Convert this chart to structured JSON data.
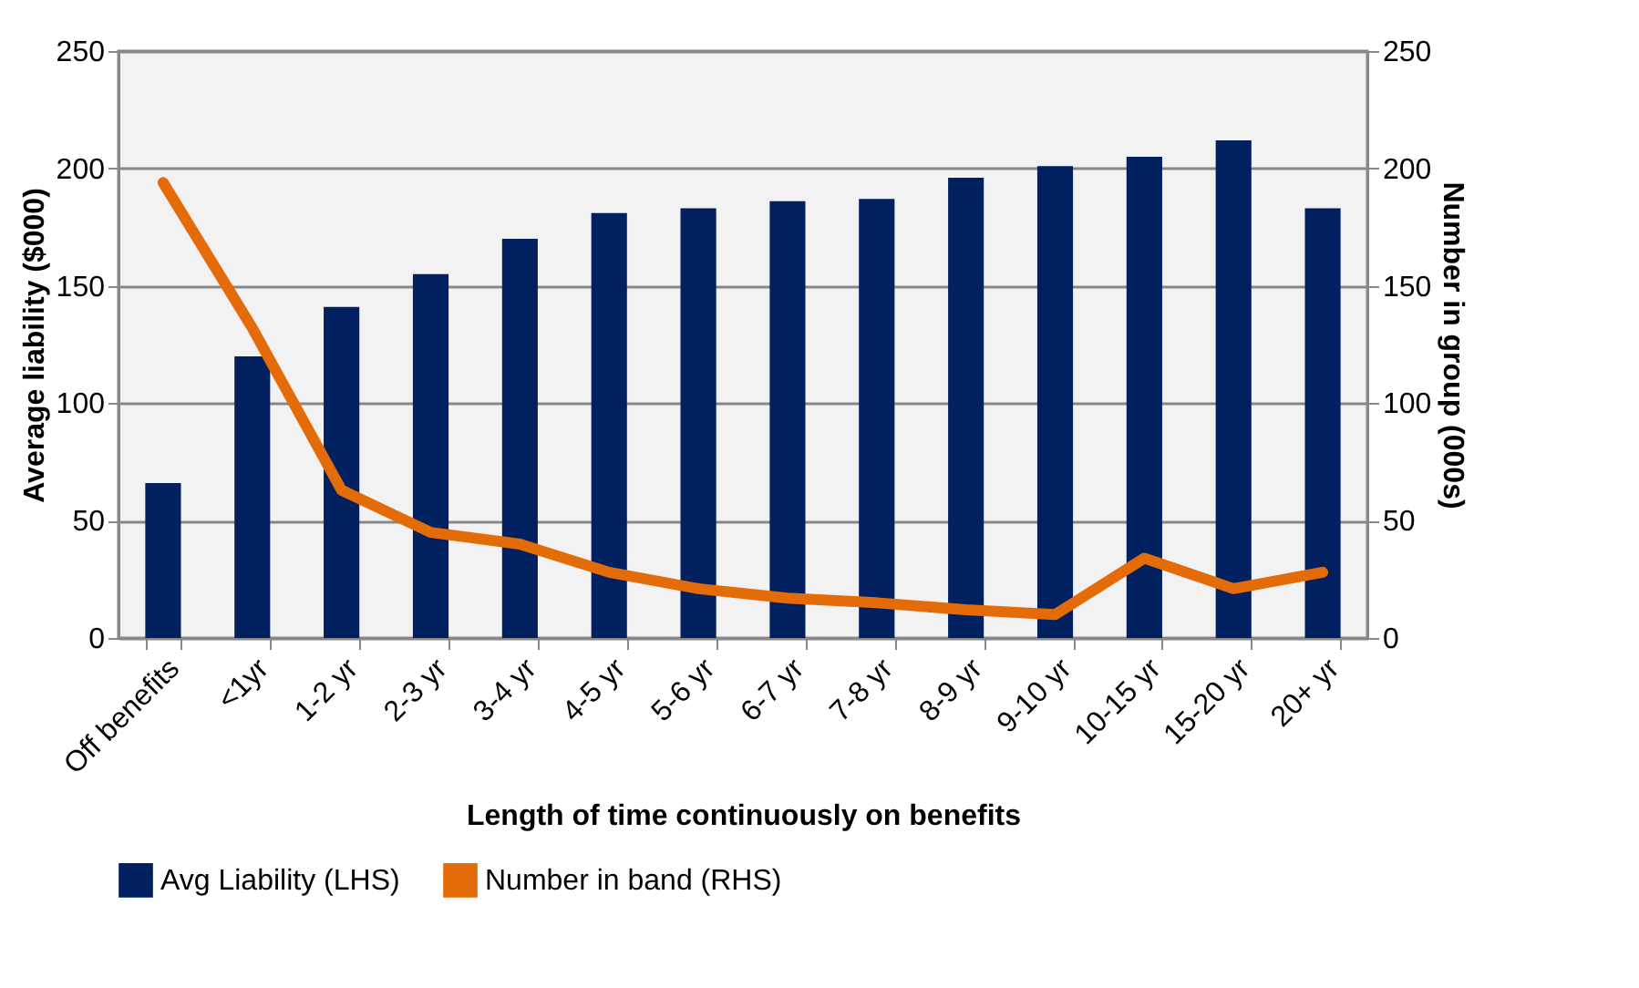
{
  "chart_data": {
    "type": "bar",
    "xlabel": "Length of time continuously on benefits",
    "ylabel": "Average liability ($000)",
    "y2label": "Number in group (000s)",
    "categories": [
      "Off benefits",
      "<1yr",
      "1-2 yr",
      "2-3 yr",
      "3-4 yr",
      "4-5 yr",
      "5-6 yr",
      "6-7 yr",
      "7-8 yr",
      "8-9 yr",
      "9-10 yr",
      "10-15 yr",
      "15-20 yr",
      "20+ yr"
    ],
    "series": [
      {
        "name": "Avg Liability (LHS)",
        "color": "#002060",
        "values": [
          66,
          120,
          141,
          155,
          170,
          181,
          183,
          186,
          187,
          196,
          201,
          205,
          212,
          183
        ]
      },
      {
        "name": "Number in band (RHS)",
        "type": "line",
        "axis": "y2",
        "color": "#e36c09",
        "values": [
          194,
          132,
          63,
          45,
          40,
          28,
          21,
          17,
          15,
          12,
          10,
          34,
          21,
          28
        ]
      }
    ],
    "ylim": [
      0,
      250
    ],
    "yticks": [
      0,
      50,
      100,
      150,
      200,
      250
    ],
    "y2lim": [
      0,
      250
    ],
    "y2ticks": [
      0,
      50,
      100,
      150,
      200,
      250
    ],
    "grid": "y",
    "legend": "bottom",
    "marker": "none",
    "line_style": "solid"
  }
}
